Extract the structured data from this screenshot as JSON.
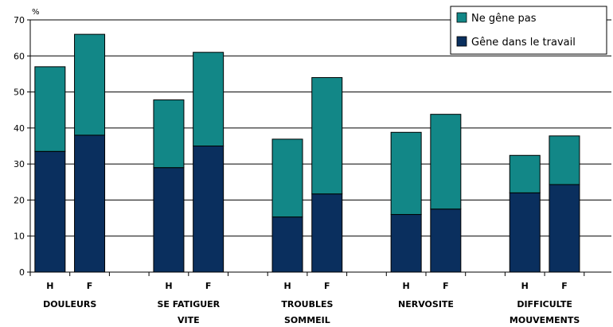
{
  "chart_data": {
    "type": "bar",
    "stacked": true,
    "ylabel": "%",
    "ylim": [
      0,
      70
    ],
    "yticks": [
      0,
      10,
      20,
      30,
      40,
      50,
      60,
      70
    ],
    "grid": true,
    "legend_position": "top-right",
    "groups": [
      {
        "label": [
          "DOULEURS"
        ],
        "bars": [
          "H",
          "F"
        ]
      },
      {
        "label": [
          "SE FATIGUER",
          "VITE"
        ],
        "bars": [
          "H",
          "F"
        ]
      },
      {
        "label": [
          "TROUBLES",
          "SOMMEIL"
        ],
        "bars": [
          "H",
          "F"
        ]
      },
      {
        "label": [
          "NERVOSITE"
        ],
        "bars": [
          "H",
          "F"
        ]
      },
      {
        "label": [
          "DIFFICULTE",
          "MOUVEMENTS"
        ],
        "bars": [
          "H",
          "F"
        ]
      }
    ],
    "series": [
      {
        "name": "Gêne dans le travail",
        "color": "#0a2f5e",
        "values": [
          33.5,
          38,
          29,
          35,
          15.3,
          21.7,
          16,
          17.5,
          22,
          24.3
        ]
      },
      {
        "name": "Ne gêne pas",
        "color": "#128787",
        "values": [
          23.5,
          28,
          18.8,
          26,
          21.6,
          32.3,
          22.8,
          26.3,
          10.4,
          13.5
        ]
      }
    ],
    "legend_order": [
      "Ne gêne pas",
      "Gêne dans le travail"
    ]
  }
}
